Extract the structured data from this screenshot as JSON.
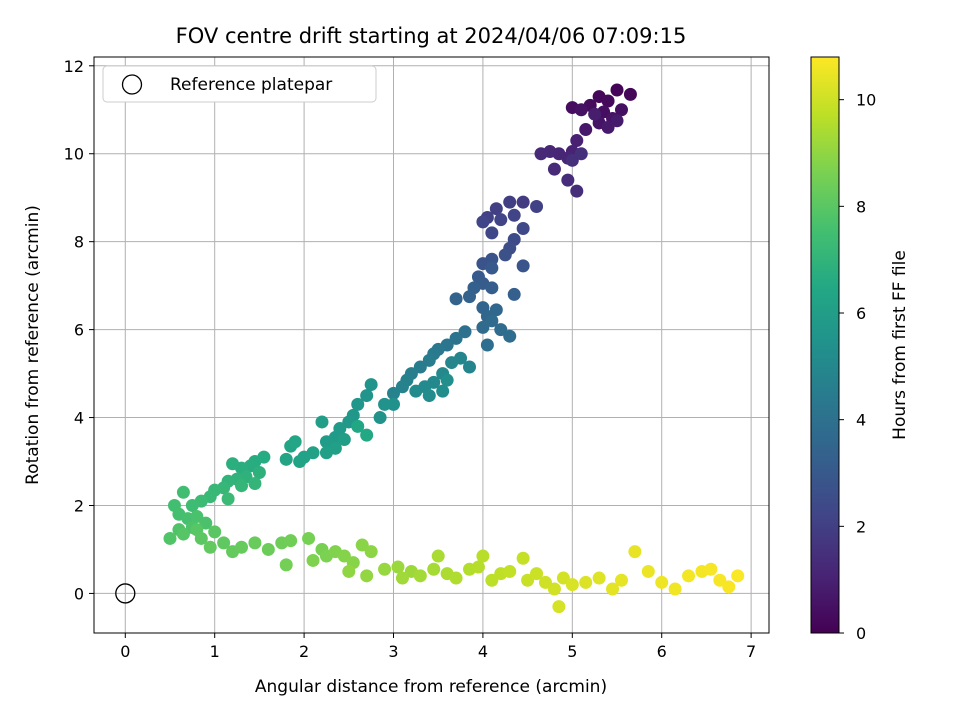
{
  "chart_data": {
    "type": "scatter",
    "title": "FOV centre drift starting at 2024/04/06 07:09:15",
    "xlabel": "Angular distance from reference (arcmin)",
    "ylabel": "Rotation from reference (arcmin)",
    "xlim": [
      -0.35,
      7.2
    ],
    "ylim": [
      -0.9,
      12.2
    ],
    "xticks": [
      0,
      1,
      2,
      3,
      4,
      5,
      6,
      7
    ],
    "yticks": [
      0,
      2,
      4,
      6,
      8,
      10,
      12
    ],
    "grid": true,
    "legend": {
      "position": "top-left",
      "entries": [
        "Reference platepar"
      ]
    },
    "reference_point": {
      "x": 0,
      "y": 0
    },
    "colorbar": {
      "label": "Hours from first FF file",
      "range": [
        0,
        10.8
      ],
      "ticks": [
        0,
        2,
        4,
        6,
        8,
        10
      ],
      "colormap": "viridis"
    },
    "points": [
      [
        5.5,
        11.45,
        0.1
      ],
      [
        5.65,
        11.35,
        0.15
      ],
      [
        5.3,
        11.3,
        0.2
      ],
      [
        5.4,
        11.2,
        0.25
      ],
      [
        5.2,
        11.1,
        0.3
      ],
      [
        5.0,
        11.05,
        0.35
      ],
      [
        5.35,
        10.95,
        0.4
      ],
      [
        5.55,
        11.0,
        0.45
      ],
      [
        5.1,
        11.0,
        0.5
      ],
      [
        5.45,
        10.8,
        0.55
      ],
      [
        5.3,
        10.7,
        0.6
      ],
      [
        5.15,
        10.55,
        0.7
      ],
      [
        5.4,
        10.6,
        0.75
      ],
      [
        5.5,
        10.75,
        0.8
      ],
      [
        5.25,
        10.9,
        0.85
      ],
      [
        5.05,
        10.3,
        1.0
      ],
      [
        5.0,
        10.05,
        1.05
      ],
      [
        4.95,
        9.9,
        1.1
      ],
      [
        4.85,
        10.0,
        1.15
      ],
      [
        4.75,
        10.05,
        1.2
      ],
      [
        4.65,
        10.0,
        1.25
      ],
      [
        4.8,
        9.65,
        1.3
      ],
      [
        4.95,
        9.4,
        1.35
      ],
      [
        5.05,
        9.15,
        1.4
      ],
      [
        5.0,
        9.85,
        1.45
      ],
      [
        5.1,
        10.0,
        1.5
      ],
      [
        4.45,
        8.9,
        1.9
      ],
      [
        4.3,
        8.9,
        1.95
      ],
      [
        4.15,
        8.75,
        2.0
      ],
      [
        4.05,
        8.55,
        2.05
      ],
      [
        4.6,
        8.8,
        2.1
      ],
      [
        4.35,
        8.6,
        2.15
      ],
      [
        4.2,
        8.5,
        2.2
      ],
      [
        4.0,
        8.45,
        2.25
      ],
      [
        4.1,
        8.2,
        2.3
      ],
      [
        4.45,
        8.3,
        2.35
      ],
      [
        4.35,
        8.05,
        2.45
      ],
      [
        4.3,
        7.85,
        2.55
      ],
      [
        4.25,
        7.7,
        2.65
      ],
      [
        4.1,
        7.6,
        2.75
      ],
      [
        4.0,
        7.5,
        2.8
      ],
      [
        4.45,
        7.45,
        2.85
      ],
      [
        4.1,
        7.4,
        3.0
      ],
      [
        3.95,
        7.2,
        3.05
      ],
      [
        4.0,
        7.05,
        3.1
      ],
      [
        4.1,
        6.95,
        3.2
      ],
      [
        4.35,
        6.8,
        3.25
      ],
      [
        3.9,
        6.95,
        3.3
      ],
      [
        3.85,
        6.75,
        3.35
      ],
      [
        3.7,
        6.7,
        3.4
      ],
      [
        4.0,
        6.5,
        3.5
      ],
      [
        4.05,
        6.3,
        3.55
      ],
      [
        4.15,
        6.45,
        3.6
      ],
      [
        4.1,
        6.2,
        3.7
      ],
      [
        4.0,
        6.05,
        3.75
      ],
      [
        4.2,
        6.0,
        3.8
      ],
      [
        4.3,
        5.85,
        3.85
      ],
      [
        4.05,
        5.65,
        3.9
      ],
      [
        3.8,
        5.95,
        4.0
      ],
      [
        3.7,
        5.8,
        4.1
      ],
      [
        3.6,
        5.65,
        4.2
      ],
      [
        3.5,
        5.55,
        4.3
      ],
      [
        3.45,
        5.45,
        4.4
      ],
      [
        3.4,
        5.3,
        4.45
      ],
      [
        3.3,
        5.15,
        4.5
      ],
      [
        3.2,
        5.0,
        4.6
      ],
      [
        3.15,
        4.85,
        4.7
      ],
      [
        3.1,
        4.7,
        4.75
      ],
      [
        3.0,
        4.55,
        4.8
      ],
      [
        3.85,
        5.15,
        4.85
      ],
      [
        3.75,
        5.35,
        4.9
      ],
      [
        3.65,
        5.25,
        4.95
      ],
      [
        3.55,
        5.0,
        5.0
      ],
      [
        3.45,
        4.8,
        5.05
      ],
      [
        3.35,
        4.7,
        5.1
      ],
      [
        3.25,
        4.6,
        5.15
      ],
      [
        3.4,
        4.5,
        5.2
      ],
      [
        3.55,
        4.6,
        5.25
      ],
      [
        3.6,
        4.85,
        5.3
      ],
      [
        3.0,
        4.3,
        5.4
      ],
      [
        2.9,
        4.3,
        5.45
      ],
      [
        2.85,
        4.0,
        5.5
      ],
      [
        2.75,
        4.75,
        5.55
      ],
      [
        2.7,
        4.5,
        5.6
      ],
      [
        2.6,
        4.3,
        5.65
      ],
      [
        2.55,
        4.05,
        5.7
      ],
      [
        2.5,
        3.9,
        5.75
      ],
      [
        2.4,
        3.75,
        5.8
      ],
      [
        2.35,
        3.55,
        5.85
      ],
      [
        2.25,
        3.45,
        5.9
      ],
      [
        2.2,
        3.9,
        5.95
      ],
      [
        2.45,
        3.5,
        6.0
      ],
      [
        2.35,
        3.3,
        6.05
      ],
      [
        2.25,
        3.2,
        6.1
      ],
      [
        2.1,
        3.2,
        6.15
      ],
      [
        2.0,
        3.1,
        6.2
      ],
      [
        1.95,
        3.0,
        6.25
      ],
      [
        1.8,
        3.05,
        6.3
      ],
      [
        1.85,
        3.35,
        6.35
      ],
      [
        1.9,
        3.45,
        6.4
      ],
      [
        2.6,
        3.8,
        6.45
      ],
      [
        2.7,
        3.6,
        6.5
      ],
      [
        1.55,
        3.1,
        6.6
      ],
      [
        1.45,
        3.0,
        6.65
      ],
      [
        1.4,
        2.9,
        6.7
      ],
      [
        1.3,
        2.85,
        6.75
      ],
      [
        1.2,
        2.95,
        6.8
      ],
      [
        1.5,
        2.75,
        6.85
      ],
      [
        1.35,
        2.65,
        6.9
      ],
      [
        1.25,
        2.6,
        6.95
      ],
      [
        1.15,
        2.55,
        7.0
      ],
      [
        1.45,
        2.5,
        7.05
      ],
      [
        1.3,
        2.45,
        7.1
      ],
      [
        1.1,
        2.4,
        7.15
      ],
      [
        1.0,
        2.35,
        7.2
      ],
      [
        0.95,
        2.2,
        7.25
      ],
      [
        1.15,
        2.15,
        7.3
      ],
      [
        0.85,
        2.1,
        7.35
      ],
      [
        0.75,
        2.0,
        7.4
      ],
      [
        0.65,
        2.3,
        7.45
      ],
      [
        0.55,
        2.0,
        7.5
      ],
      [
        0.6,
        1.8,
        7.55
      ],
      [
        0.7,
        1.7,
        7.6
      ],
      [
        0.8,
        1.75,
        7.65
      ],
      [
        0.9,
        1.6,
        7.7
      ],
      [
        0.75,
        1.5,
        7.75
      ],
      [
        0.6,
        1.45,
        7.8
      ],
      [
        0.5,
        1.25,
        7.85
      ],
      [
        0.65,
        1.35,
        7.9
      ],
      [
        0.8,
        1.45,
        7.95
      ],
      [
        1.0,
        1.4,
        8.0
      ],
      [
        0.85,
        1.25,
        8.05
      ],
      [
        1.1,
        1.15,
        8.1
      ],
      [
        0.95,
        1.05,
        8.15
      ],
      [
        1.2,
        0.95,
        8.2
      ],
      [
        1.3,
        1.05,
        8.25
      ],
      [
        1.45,
        1.15,
        8.3
      ],
      [
        1.6,
        1.0,
        8.35
      ],
      [
        1.75,
        1.15,
        8.4
      ],
      [
        1.85,
        1.2,
        8.45
      ],
      [
        1.8,
        0.65,
        8.5
      ],
      [
        2.05,
        1.25,
        8.55
      ],
      [
        2.2,
        1.0,
        8.6
      ],
      [
        2.25,
        0.85,
        8.65
      ],
      [
        2.1,
        0.75,
        8.7
      ],
      [
        2.35,
        0.95,
        8.75
      ],
      [
        2.45,
        0.85,
        8.8
      ],
      [
        2.55,
        0.7,
        8.85
      ],
      [
        2.65,
        1.1,
        8.9
      ],
      [
        2.75,
        0.95,
        8.95
      ],
      [
        2.5,
        0.5,
        9.0
      ],
      [
        2.7,
        0.4,
        9.05
      ],
      [
        2.9,
        0.55,
        9.1
      ],
      [
        3.05,
        0.6,
        9.15
      ],
      [
        3.2,
        0.5,
        9.2
      ],
      [
        3.1,
        0.35,
        9.25
      ],
      [
        3.3,
        0.4,
        9.3
      ],
      [
        3.45,
        0.55,
        9.35
      ],
      [
        3.5,
        0.85,
        9.4
      ],
      [
        3.6,
        0.45,
        9.45
      ],
      [
        3.7,
        0.35,
        9.5
      ],
      [
        3.85,
        0.55,
        9.55
      ],
      [
        3.95,
        0.6,
        9.6
      ],
      [
        4.0,
        0.85,
        9.65
      ],
      [
        4.1,
        0.3,
        9.7
      ],
      [
        4.2,
        0.45,
        9.75
      ],
      [
        4.3,
        0.5,
        9.8
      ],
      [
        4.45,
        0.8,
        9.85
      ],
      [
        4.5,
        0.3,
        9.9
      ],
      [
        4.6,
        0.45,
        9.95
      ],
      [
        4.7,
        0.25,
        10.0
      ],
      [
        4.8,
        0.1,
        10.05
      ],
      [
        4.9,
        0.35,
        10.1
      ],
      [
        4.85,
        -0.3,
        10.15
      ],
      [
        5.0,
        0.2,
        10.2
      ],
      [
        5.15,
        0.25,
        10.25
      ],
      [
        5.3,
        0.35,
        10.3
      ],
      [
        5.45,
        0.1,
        10.35
      ],
      [
        5.55,
        0.3,
        10.4
      ],
      [
        5.7,
        0.95,
        10.45
      ],
      [
        5.85,
        0.5,
        10.5
      ],
      [
        6.0,
        0.25,
        10.55
      ],
      [
        6.15,
        0.1,
        10.6
      ],
      [
        6.3,
        0.4,
        10.62
      ],
      [
        6.45,
        0.5,
        10.65
      ],
      [
        6.55,
        0.55,
        10.68
      ],
      [
        6.65,
        0.3,
        10.7
      ],
      [
        6.75,
        0.15,
        10.72
      ],
      [
        6.85,
        0.4,
        10.75
      ]
    ]
  }
}
